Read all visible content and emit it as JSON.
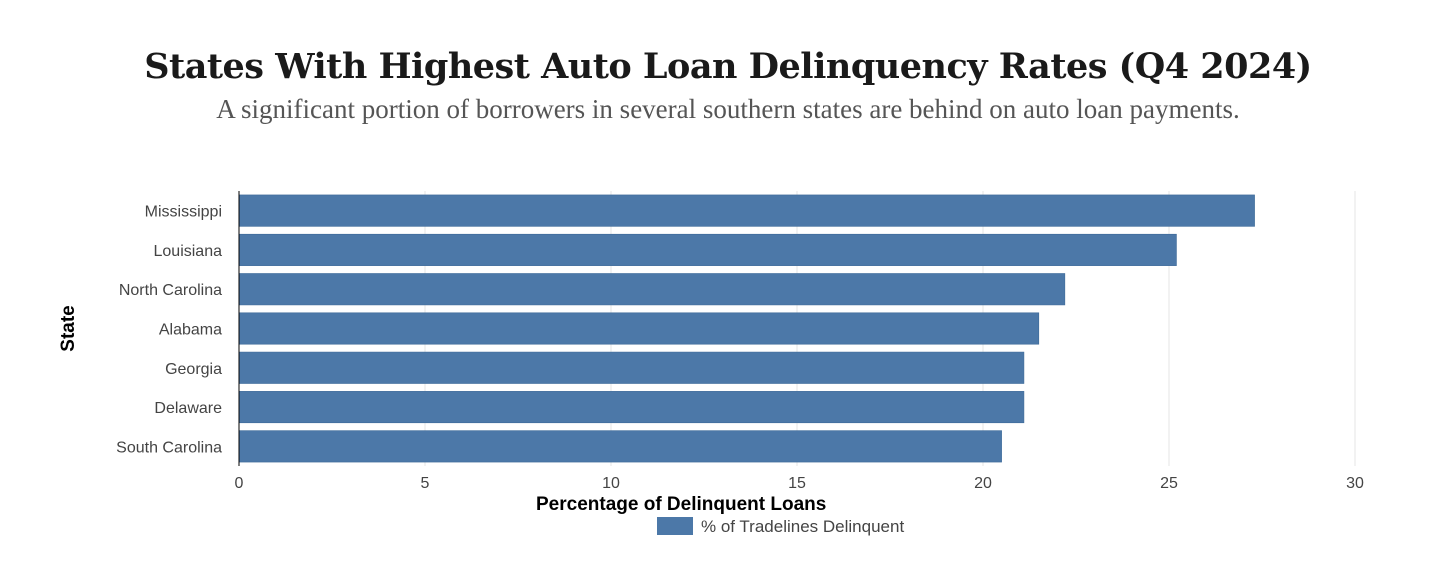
{
  "title": "States With Highest Auto Loan Delinquency Rates (Q4 2024)",
  "subtitle": "A significant portion of borrowers in several southern states are behind on auto loan payments.",
  "colors": {
    "bar": "#4c78a8",
    "grid": "#e6e6e6",
    "axis": "#000000"
  },
  "chart_data": {
    "type": "bar",
    "orientation": "horizontal",
    "categories": [
      "Mississippi",
      "Louisiana",
      "North Carolina",
      "Alabama",
      "Georgia",
      "Delaware",
      "South Carolina"
    ],
    "series": [
      {
        "name": "% of Tradelines Delinquent",
        "values": [
          27.3,
          25.2,
          22.2,
          21.5,
          21.1,
          21.1,
          20.5
        ]
      }
    ],
    "xlabel": "Percentage of Delinquent Loans",
    "ylabel": "State",
    "xlim": [
      0,
      30
    ],
    "xticks": [
      0,
      5,
      10,
      15,
      20,
      25,
      30
    ],
    "grid": true,
    "legend": "bottom-center"
  }
}
